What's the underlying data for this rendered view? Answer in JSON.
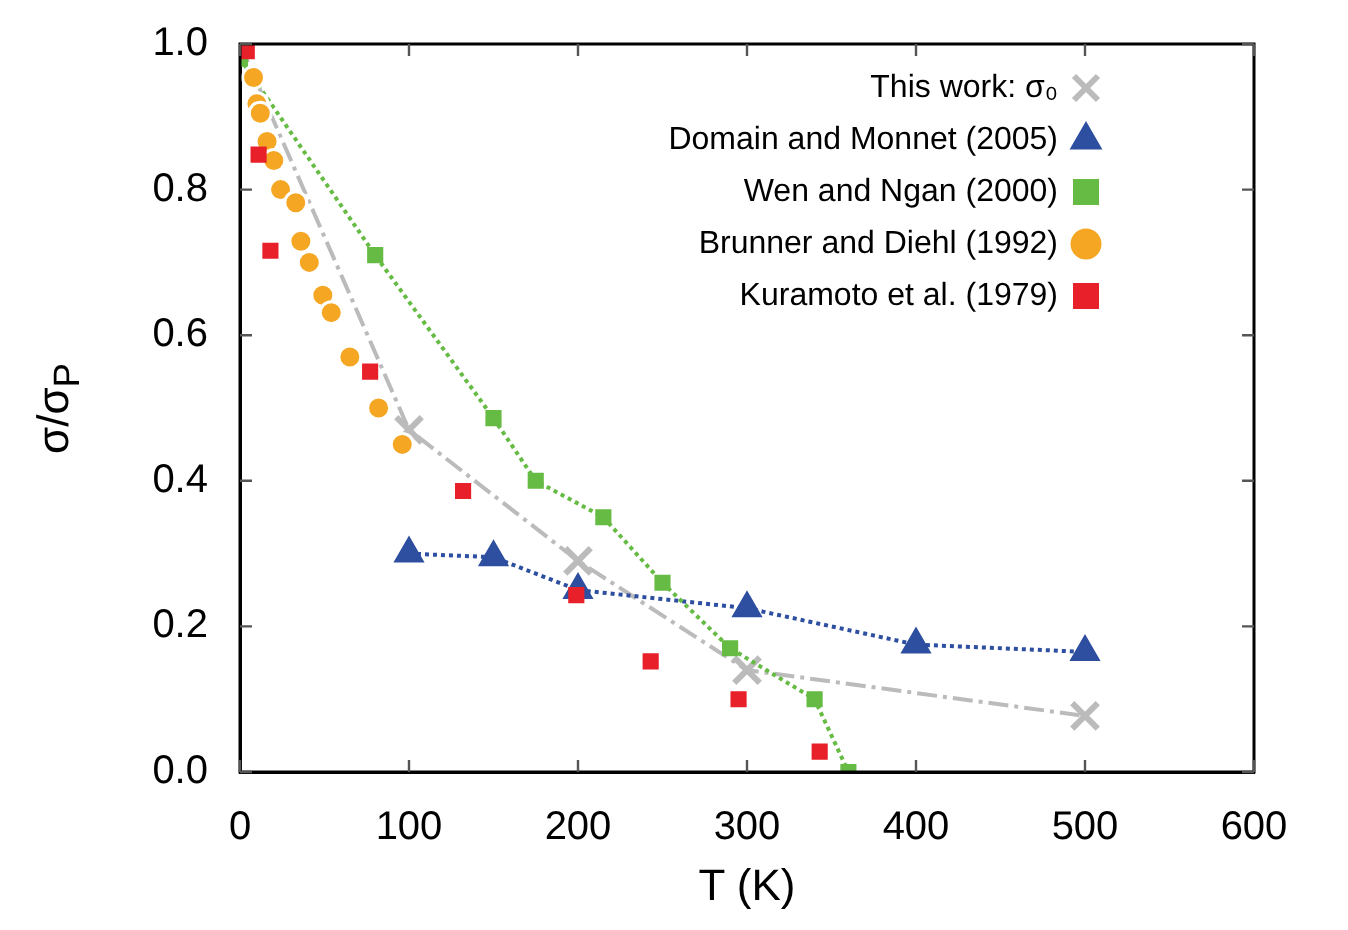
{
  "chart_data": {
    "type": "line",
    "xlabel": "T (K)",
    "ylabel": "σ/σ$_{P}$",
    "xlim": [
      0,
      600
    ],
    "xticks": [
      0,
      100,
      200,
      300,
      400,
      500,
      600
    ],
    "ylim": [
      0,
      1
    ],
    "yticks": [
      {
        "value": 0,
        "label": "0.0"
      },
      0.2,
      0.4,
      0.6,
      0.8,
      {
        "value": 1,
        "label": "1.0"
      }
    ],
    "grid": false,
    "legend": "top right",
    "series": [
      {
        "name": "This work: σ₀",
        "type": "line",
        "color": "#bbbbbb",
        "marker": "cross",
        "line_style": "dashed",
        "x": [
          0,
          100,
          200,
          300,
          500
        ],
        "values": [
          1.0,
          0.47,
          0.29,
          0.14,
          0.077
        ]
      },
      {
        "name": "Domain and Monnet (2005)",
        "type": "line",
        "color": "#2e4fa0",
        "marker": "triangle",
        "line_style": "dotted",
        "x": [
          100,
          150,
          200,
          300,
          400,
          500
        ],
        "values": [
          0.3,
          0.295,
          0.25,
          0.225,
          0.175,
          0.165
        ]
      },
      {
        "name": "Wen and Ngan (2000)",
        "type": "line",
        "color": "#66bb44",
        "marker": "square",
        "line_style": "dotted",
        "x": [
          0,
          80,
          150,
          175,
          215,
          250,
          290,
          340,
          360
        ],
        "values": [
          0.98,
          0.71,
          0.486,
          0.4,
          0.35,
          0.26,
          0.17,
          0.1,
          0.0
        ]
      },
      {
        "name": "Brunner and Diehl (1992)",
        "type": "scatter",
        "color": "#f5a623",
        "marker": "circle",
        "x": [
          8,
          10,
          12,
          16,
          20,
          24,
          33,
          36,
          41,
          49,
          54,
          65,
          82,
          96
        ],
        "values": [
          0.954,
          0.918,
          0.905,
          0.866,
          0.84,
          0.8,
          0.782,
          0.729,
          0.7,
          0.655,
          0.631,
          0.57,
          0.5,
          0.45
        ]
      },
      {
        "name": "Kuramoto et al. (1979)",
        "type": "scatter",
        "color": "#e8202a",
        "marker": "square",
        "x": [
          4,
          11,
          18,
          77,
          132,
          199,
          243,
          295,
          343
        ],
        "values": [
          0.99,
          0.848,
          0.716,
          0.55,
          0.386,
          0.243,
          0.152,
          0.1,
          0.028
        ]
      }
    ]
  }
}
